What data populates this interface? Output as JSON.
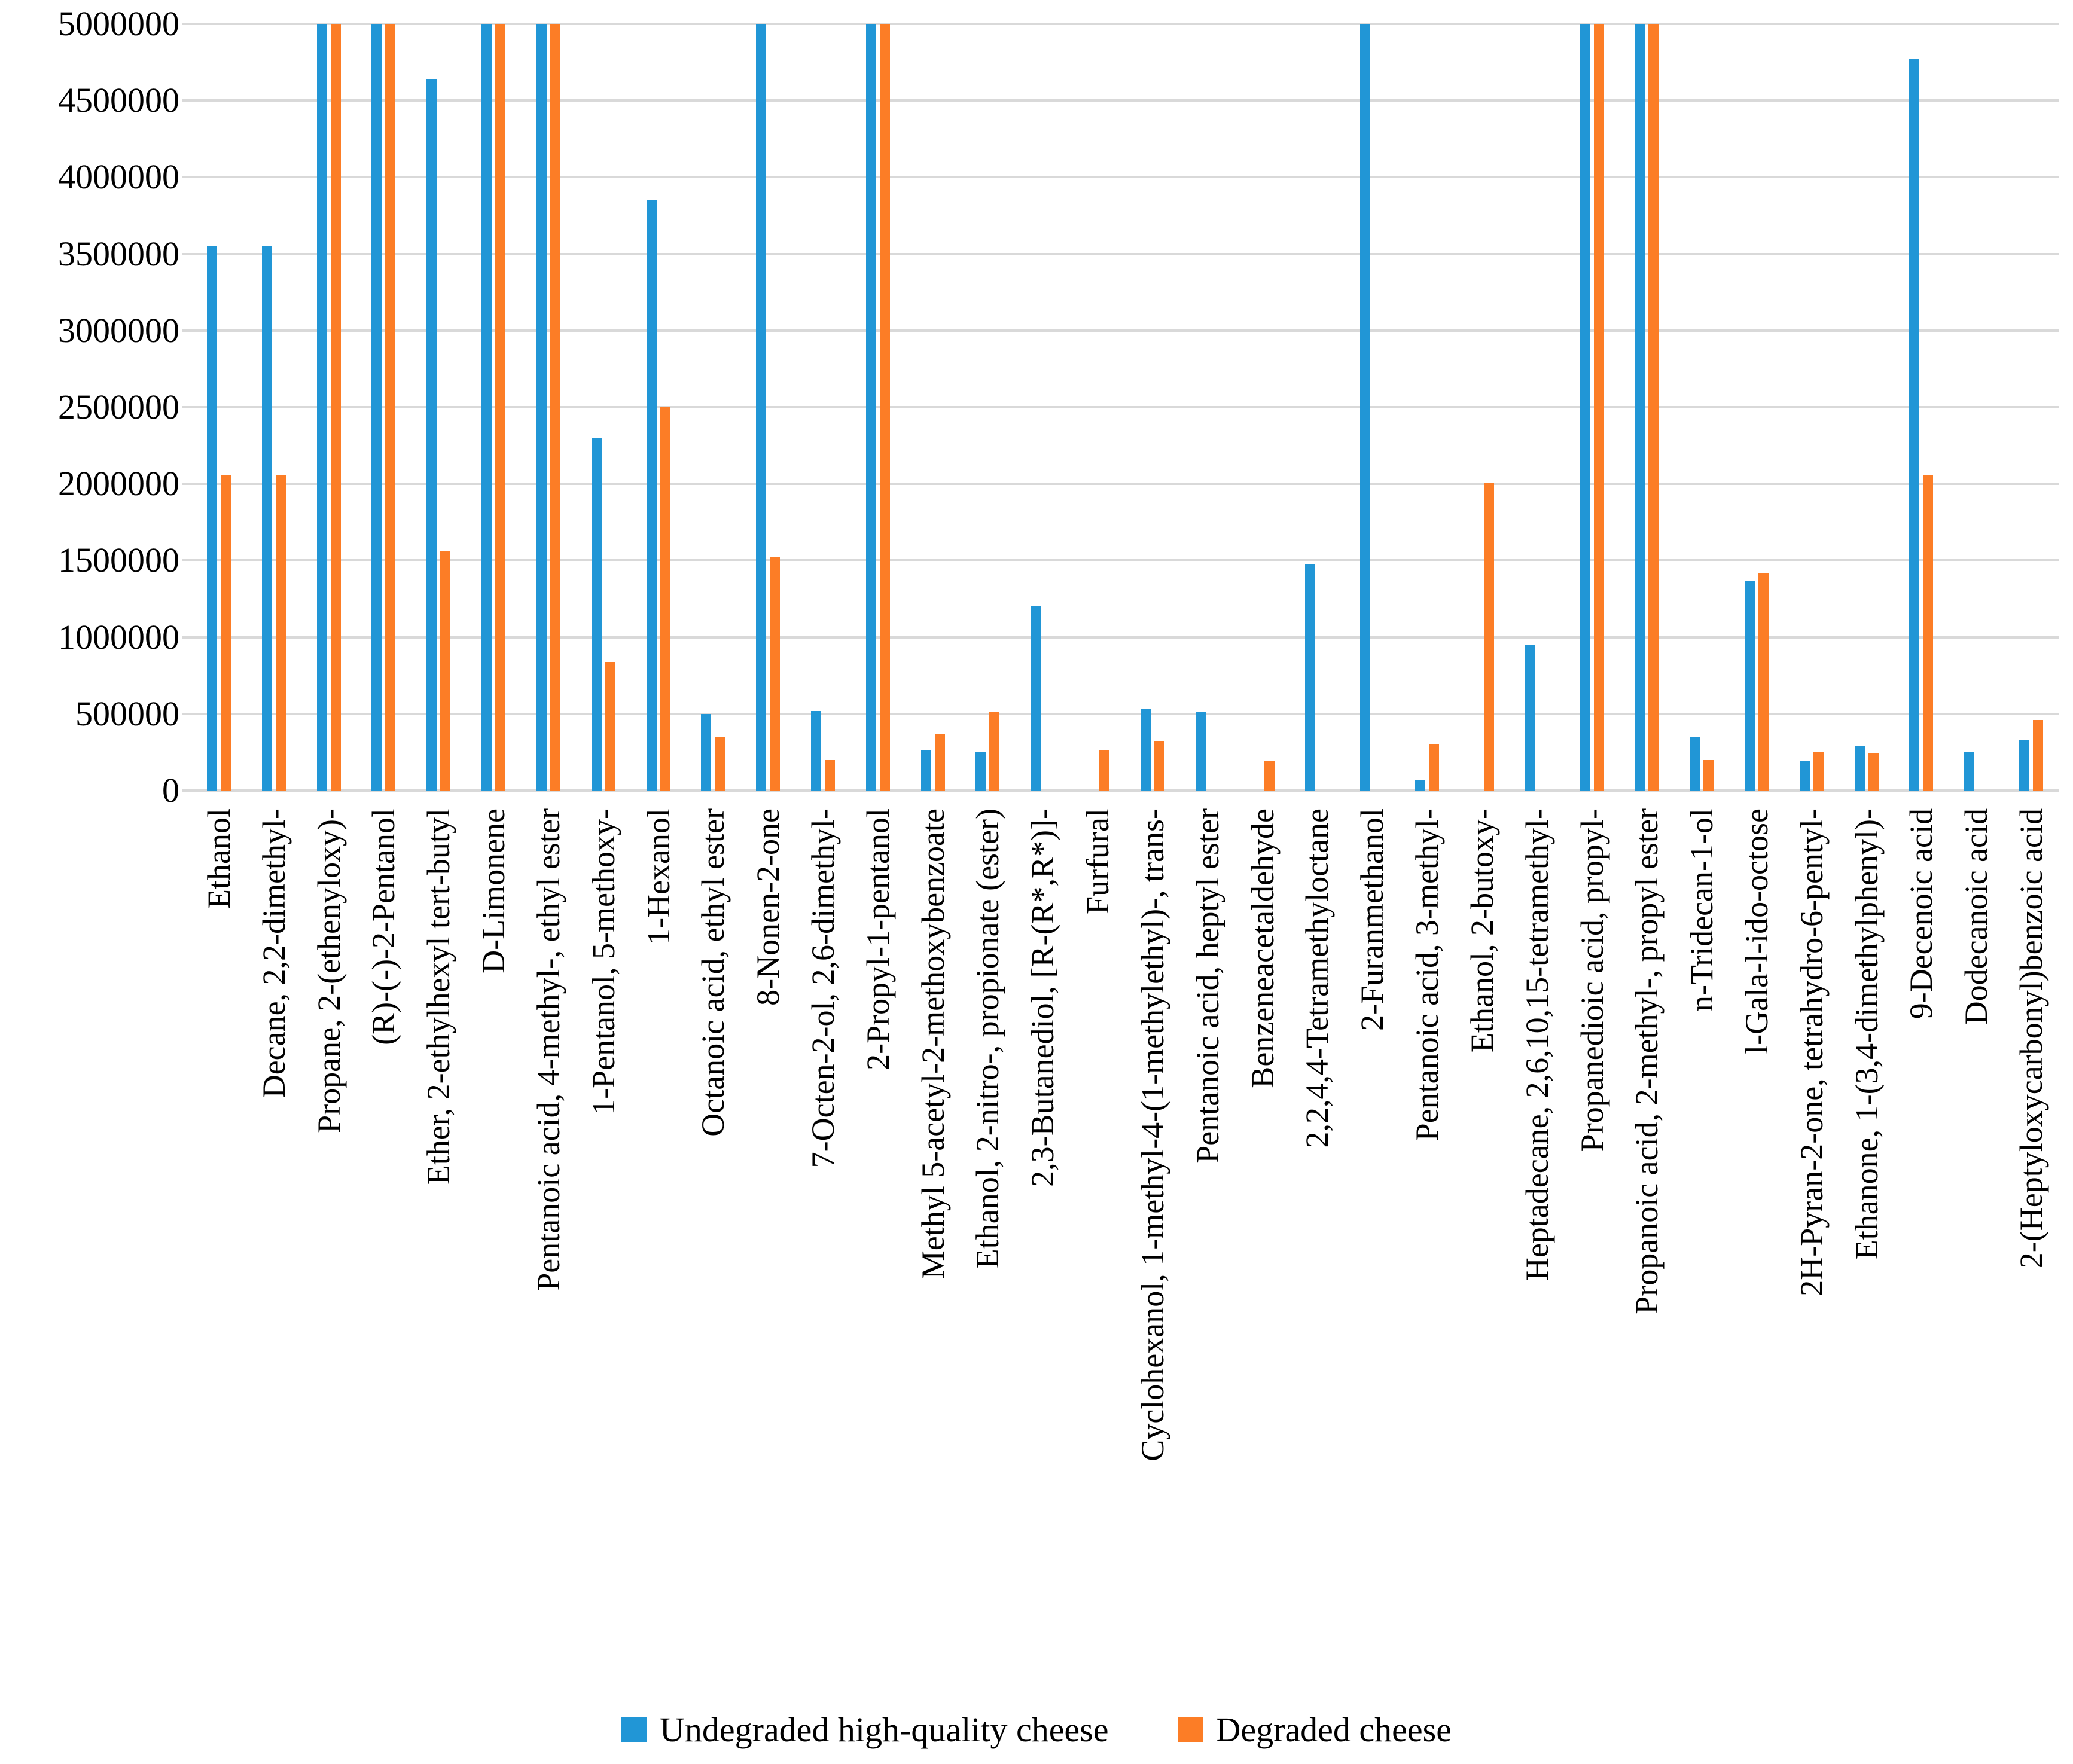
{
  "chart_data": {
    "type": "bar",
    "title": "",
    "xlabel": "",
    "ylabel": "",
    "ylim": [
      0,
      5000000
    ],
    "ytick_interval": 500000,
    "grid": "horizontal-gridlines-on",
    "legend_position": "bottom-center",
    "note": "bars with value 5000000 are clipped at the axis maximum",
    "categories": [
      "Ethanol",
      "Decane, 2,2-dimethyl-",
      "Propane, 2-(ethenyloxy)-",
      "(R)-(-)-2-Pentanol",
      "Ether, 2-ethylhexyl tert-butyl",
      "D-Limonene",
      "Pentanoic acid, 4-methyl-, ethyl ester",
      "1-Pentanol, 5-methoxy-",
      "1-Hexanol",
      "Octanoic acid, ethyl ester",
      "8-Nonen-2-one",
      "7-Octen-2-ol, 2,6-dimethyl-",
      "2-Propyl-1-pentanol",
      "Methyl 5-acetyl-2-methoxybenzoate",
      "Ethanol, 2-nitro-, propionate (ester)",
      "2,3-Butanediol, [R-(R*,R*)]-",
      "Furfural",
      "Cyclohexanol, 1-methyl-4-(1-methylethyl)-, trans-",
      "Pentanoic acid, heptyl ester",
      "Benzeneacetaldehyde",
      "2,2,4,4-Tetramethyloctane",
      "2-Furanmethanol",
      "Pentanoic acid, 3-methyl-",
      "Ethanol, 2-butoxy-",
      "Heptadecane, 2,6,10,15-tetramethyl-",
      "Propanedioic acid, propyl-",
      "Propanoic acid, 2-methyl-, propyl ester",
      "n-Tridecan-1-ol",
      "l-Gala-l-ido-octose",
      "2H-Pyran-2-one, tetrahydro-6-pentyl-",
      "Ethanone, 1-(3,4-dimethylphenyl)-",
      "9-Decenoic acid",
      "Dodecanoic acid",
      "2-(Heptyloxycarbonyl)benzoic acid"
    ],
    "series": [
      {
        "name": "Undegraded high-quality cheese",
        "color": "#2196d6",
        "values": [
          3550000,
          3550000,
          5000000,
          5000000,
          4640000,
          5000000,
          5000000,
          2300000,
          3850000,
          500000,
          5000000,
          520000,
          5000000,
          260000,
          250000,
          1200000,
          0,
          530000,
          510000,
          0,
          1480000,
          5000000,
          70000,
          0,
          950000,
          5000000,
          5000000,
          350000,
          1370000,
          190000,
          290000,
          4770000,
          250000,
          330000
        ]
      },
      {
        "name": "Degraded cheese",
        "color": "#fc7d26",
        "values": [
          2060000,
          2060000,
          5000000,
          5000000,
          1560000,
          5000000,
          5000000,
          840000,
          2500000,
          350000,
          1520000,
          200000,
          5000000,
          370000,
          510000,
          0,
          260000,
          320000,
          0,
          190000,
          0,
          0,
          300000,
          2010000,
          0,
          5000000,
          5000000,
          200000,
          1420000,
          250000,
          240000,
          2060000,
          0,
          460000
        ]
      }
    ]
  },
  "legend": {
    "items": [
      {
        "label": "Undegraded high-quality cheese",
        "color": "#2196d6"
      },
      {
        "label": "Degraded cheese",
        "color": "#fc7d26"
      }
    ]
  },
  "colors": {
    "gridline": "#d9d9d9",
    "text": "#000000",
    "background": "#ffffff"
  }
}
